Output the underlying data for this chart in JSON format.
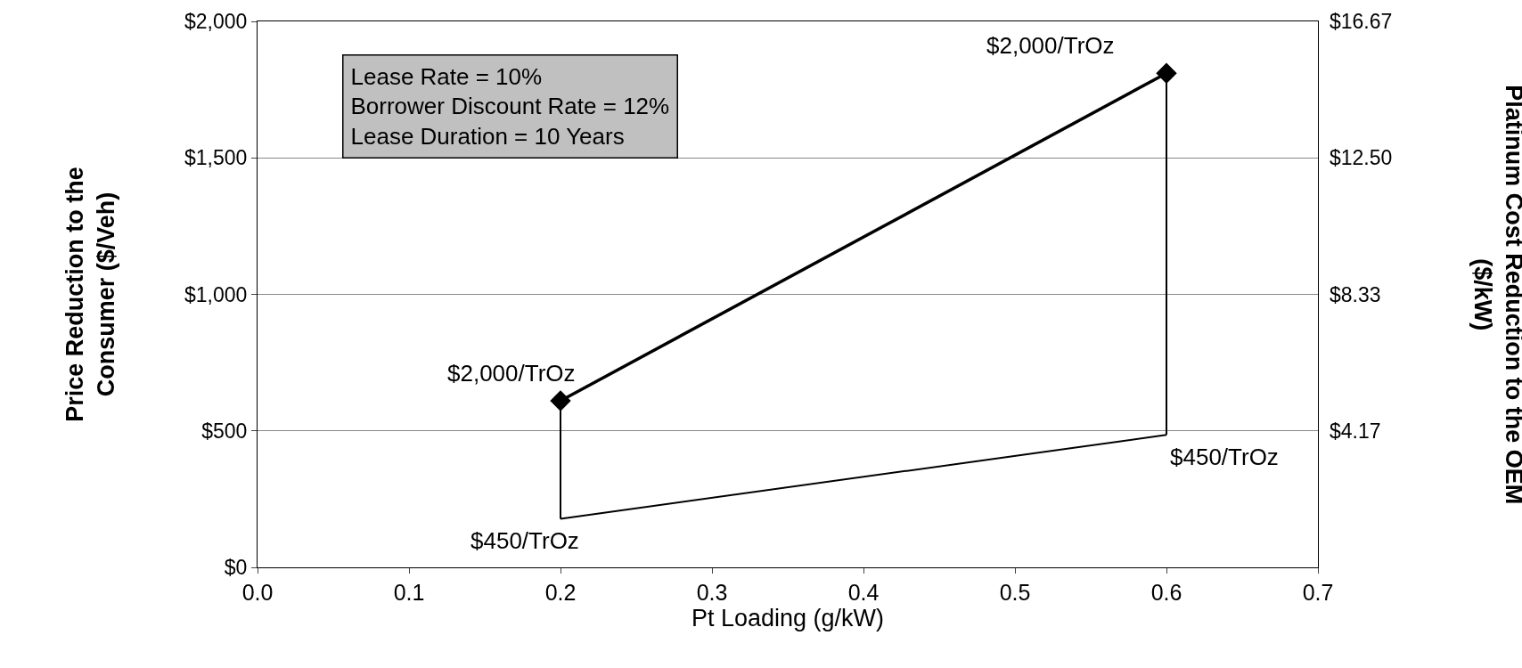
{
  "chart_data": {
    "type": "line",
    "xlabel": "Pt Loading (g/kW)",
    "ylabel": "Price Reduction to the\nConsumer ($/Veh)",
    "y2label": "Platinum Cost Reduction to the OEM\n($/kW)",
    "x": [
      0.2,
      0.6
    ],
    "series": [
      {
        "name": "$2,000/TrOz",
        "color": "#000000",
        "values": [
          610,
          1810
        ],
        "marker": "diamond"
      },
      {
        "name": "$450/TrOz",
        "color": "#000000",
        "values": [
          178,
          485
        ],
        "marker": "none"
      }
    ],
    "xlim": [
      0,
      0.7
    ],
    "xticks": [
      {
        "value": 0,
        "label": "0.0"
      },
      0.1,
      0.2,
      0.3,
      0.4,
      0.5,
      0.6,
      0.7
    ],
    "ylim": [
      0,
      2000
    ],
    "yticks": [
      {
        "value": 0,
        "label": "$0"
      },
      {
        "value": 500,
        "label": "$500"
      },
      {
        "value": 1000,
        "label": "$1,000"
      },
      {
        "value": 1500,
        "label": "$1,500"
      },
      {
        "value": 2000,
        "label": "$2,000"
      }
    ],
    "y2lim": [
      0,
      16.67
    ],
    "y2ticks": [
      {
        "value": 4.17,
        "label": "$4.17"
      },
      {
        "value": 8.33,
        "label": "$8.33"
      },
      {
        "value": 12.5,
        "label": "$12.50"
      },
      {
        "value": 16.67,
        "label": "$16.67"
      }
    ],
    "grid": "y",
    "annotations": [
      "Lease Rate = 10%\nBorrower Discount Rate = 12%\nLease Duration = 10 Years"
    ]
  }
}
